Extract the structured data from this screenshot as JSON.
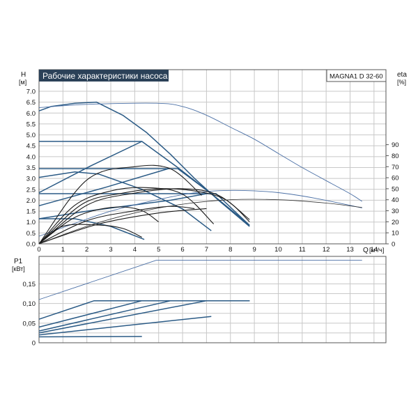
{
  "chart_data": [
    {
      "type": "line",
      "title": "Рабочие характеристики насоса",
      "model_label": "MAGNA1 D 32-60",
      "ylabel": "H",
      "yunit": "[м]",
      "y2label": "eta",
      "y2unit": "[%]",
      "xlabel": "Q",
      "xunit": "[м³/ч]",
      "xlim": [
        0,
        14.5
      ],
      "ylim": [
        0,
        7.0
      ],
      "y2lim": [
        0,
        100
      ],
      "grid": true,
      "x_ticks": [
        "0",
        "1",
        "2",
        "3",
        "4",
        "5",
        "6",
        "7",
        "8",
        "9",
        "10",
        "11",
        "12",
        "13",
        "14"
      ],
      "y_ticks": [
        "0.0",
        "0.5",
        "1.0",
        "1.5",
        "2.0",
        "2.5",
        "3.0",
        "3.5",
        "4.0",
        "4.5",
        "5.0",
        "5.5",
        "6.0",
        "6.5",
        "7.0"
      ],
      "y2_ticks": [
        "0",
        "10",
        "20",
        "30",
        "40",
        "50",
        "60",
        "70",
        "80",
        "90"
      ],
      "colors": {
        "pump_curve": "#2a5a85",
        "efficiency_curve": "#1a1a1a",
        "twin_pump": "#4a6fa5",
        "title_bg": "#2b4158"
      },
      "series": [
        {
          "kind": "head",
          "role": "single",
          "x": [
            0,
            0.5,
            1.5,
            2.4,
            3.5,
            4.5,
            5.5,
            6.5,
            7.5,
            8.8
          ],
          "y": [
            6.1,
            6.3,
            6.45,
            6.5,
            5.9,
            5.1,
            4.1,
            3.0,
            2.0,
            0.8
          ]
        },
        {
          "kind": "head",
          "role": "single",
          "x": [
            0,
            4.3,
            5.8,
            7.2,
            8.8
          ],
          "y": [
            4.7,
            4.7,
            3.5,
            2.3,
            0.85
          ]
        },
        {
          "kind": "head",
          "role": "single",
          "x": [
            0,
            4.3,
            5.8,
            7.2,
            8.8
          ],
          "y": [
            3.45,
            3.45,
            3.45,
            2.3,
            0.85
          ]
        },
        {
          "kind": "head",
          "role": "single",
          "x": [
            0,
            4.3,
            6.4,
            7.4,
            8.8
          ],
          "y": [
            2.3,
            2.3,
            2.3,
            2.3,
            0.85
          ]
        },
        {
          "kind": "head",
          "role": "single",
          "x": [
            0,
            2.2,
            4.3
          ],
          "y": [
            2.35,
            3.6,
            4.7
          ]
        },
        {
          "kind": "head",
          "role": "single",
          "x": [
            0,
            2.8,
            5.4
          ],
          "y": [
            1.75,
            2.6,
            3.45
          ]
        },
        {
          "kind": "head",
          "role": "single",
          "x": [
            0,
            2.0,
            5.5,
            7.0
          ],
          "y": [
            1.15,
            1.5,
            2.0,
            2.3
          ]
        },
        {
          "kind": "head",
          "role": "single",
          "x": [
            0,
            1.5,
            2.5,
            4.3,
            6.0,
            7.2
          ],
          "y": [
            3.05,
            3.3,
            3.2,
            2.5,
            1.6,
            0.6
          ]
        },
        {
          "kind": "head",
          "role": "single",
          "x": [
            0,
            1.5,
            3.0,
            4.4
          ],
          "y": [
            1.15,
            1.15,
            0.8,
            0.2
          ]
        },
        {
          "kind": "head",
          "role": "twin",
          "x": [
            0,
            2.0,
            4.9,
            6.0,
            7.0,
            8.0,
            9.0,
            10.0,
            11.0,
            12.0,
            13.0,
            13.5
          ],
          "y": [
            6.25,
            6.4,
            6.45,
            6.3,
            5.9,
            5.35,
            4.8,
            4.15,
            3.5,
            2.9,
            2.3,
            1.95
          ]
        },
        {
          "kind": "head",
          "role": "twin",
          "x": [
            0,
            3.0,
            5.5,
            7.0,
            8.5,
            10.0,
            11.5,
            13.5
          ],
          "y": [
            0.35,
            1.5,
            2.15,
            2.4,
            2.45,
            2.35,
            2.1,
            1.65
          ]
        },
        {
          "kind": "efficiency",
          "x": [
            0,
            2.0,
            4.0,
            5.5,
            6.8
          ],
          "y": [
            0,
            58,
            70,
            68,
            44
          ]
        },
        {
          "kind": "efficiency",
          "x": [
            0,
            1.5,
            3.0,
            4.5,
            6.0,
            7.3
          ],
          "y": [
            0,
            35,
            48,
            51,
            45,
            18
          ]
        },
        {
          "kind": "efficiency",
          "x": [
            0,
            1.8,
            3.5,
            5.0,
            6.5,
            7.8,
            8.8
          ],
          "y": [
            0,
            36,
            46,
            50,
            48,
            40,
            20
          ]
        },
        {
          "kind": "efficiency",
          "x": [
            0,
            2.0,
            4.0,
            6.0,
            7.5,
            8.8
          ],
          "y": [
            0,
            35,
            46,
            50,
            44,
            22
          ]
        },
        {
          "kind": "efficiency",
          "x": [
            0,
            1.5,
            3.0,
            4.2,
            5.0
          ],
          "y": [
            0,
            24,
            33,
            31,
            20
          ]
        },
        {
          "kind": "efficiency",
          "x": [
            0,
            1.0,
            2.5,
            3.5,
            4.3
          ],
          "y": [
            0,
            16,
            17,
            14,
            6
          ]
        },
        {
          "kind": "efficiency",
          "x": [
            0,
            2.0,
            4.0,
            5.5,
            6.5
          ],
          "y": [
            0,
            21,
            30,
            34,
            32
          ]
        },
        {
          "kind": "efficiency",
          "x": [
            0,
            2.5,
            5.0,
            7.0
          ],
          "y": [
            0,
            18,
            28,
            32
          ]
        },
        {
          "kind": "efficiency",
          "role": "twin",
          "x": [
            0,
            2.0,
            4.0,
            6.0,
            8.0,
            10.0,
            12.0,
            13.5
          ],
          "y": [
            0,
            16,
            28,
            36,
            40,
            40,
            37,
            33
          ]
        }
      ]
    },
    {
      "type": "line",
      "ylabel": "P1",
      "yunit": "[кВт]",
      "xlim": [
        0,
        14.5
      ],
      "ylim": [
        0,
        0.22
      ],
      "grid": true,
      "y_ticks": [
        "0",
        "0,05",
        "0,10",
        "0,15"
      ],
      "series": [
        {
          "role": "twin",
          "x": [
            0,
            4.9,
            13.5
          ],
          "y": [
            0.11,
            0.21,
            0.21
          ]
        },
        {
          "role": "single",
          "x": [
            0,
            2.3,
            8.8
          ],
          "y": [
            0.06,
            0.107,
            0.107
          ]
        },
        {
          "role": "single",
          "x": [
            0,
            4.3,
            8.8
          ],
          "y": [
            0.04,
            0.107,
            0.107
          ]
        },
        {
          "role": "single",
          "x": [
            0,
            5.5,
            8.8
          ],
          "y": [
            0.03,
            0.107,
            0.107
          ]
        },
        {
          "role": "single",
          "x": [
            0,
            7.0,
            8.8
          ],
          "y": [
            0.025,
            0.107,
            0.107
          ]
        },
        {
          "role": "single",
          "x": [
            0,
            7.2
          ],
          "y": [
            0.02,
            0.067
          ]
        },
        {
          "role": "single",
          "x": [
            0,
            4.3
          ],
          "y": [
            0.015,
            0.016
          ]
        }
      ]
    }
  ]
}
